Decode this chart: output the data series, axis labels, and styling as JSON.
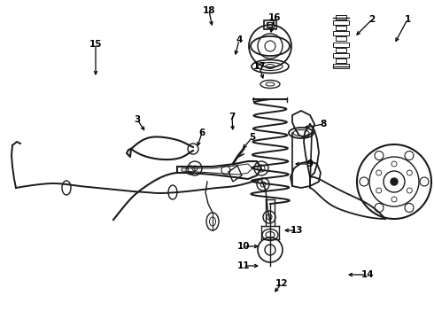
{
  "bg_color": "#ffffff",
  "line_color": "#1a1a1a",
  "label_color": "#000000",
  "label_fontsize": 7.5,
  "label_fontweight": "bold",
  "figsize": [
    4.9,
    3.6
  ],
  "dpi": 100
}
